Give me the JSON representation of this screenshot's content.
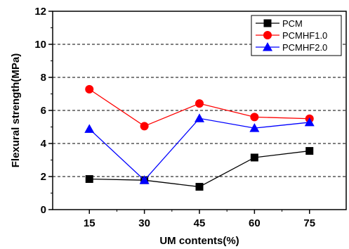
{
  "chart_data": {
    "type": "line",
    "x": [
      15,
      30,
      45,
      60,
      75
    ],
    "xticks": [
      15,
      30,
      45,
      60,
      75
    ],
    "xlim": [
      5,
      85
    ],
    "ylim": [
      0,
      12
    ],
    "yticks": [
      0,
      2,
      4,
      6,
      8,
      10,
      12
    ],
    "xlabel": "UM contents(%)",
    "ylabel": "Flexural strength(MPa)",
    "grid": "horizontal dashed at y = 2, 4, 6, 8, 10",
    "legend_position": "top-right",
    "series": [
      {
        "name": "PCM",
        "values": [
          1.85,
          1.78,
          1.38,
          3.15,
          3.55
        ],
        "color": "#000000",
        "marker": "square"
      },
      {
        "name": "PCMHF1.0",
        "values": [
          7.28,
          5.05,
          6.42,
          5.6,
          5.5
        ],
        "color": "#ff0000",
        "marker": "circle"
      },
      {
        "name": "PCMHF2.0",
        "values": [
          4.88,
          1.78,
          5.52,
          4.93,
          5.28
        ],
        "color": "#0000ff",
        "marker": "triangle"
      }
    ]
  }
}
